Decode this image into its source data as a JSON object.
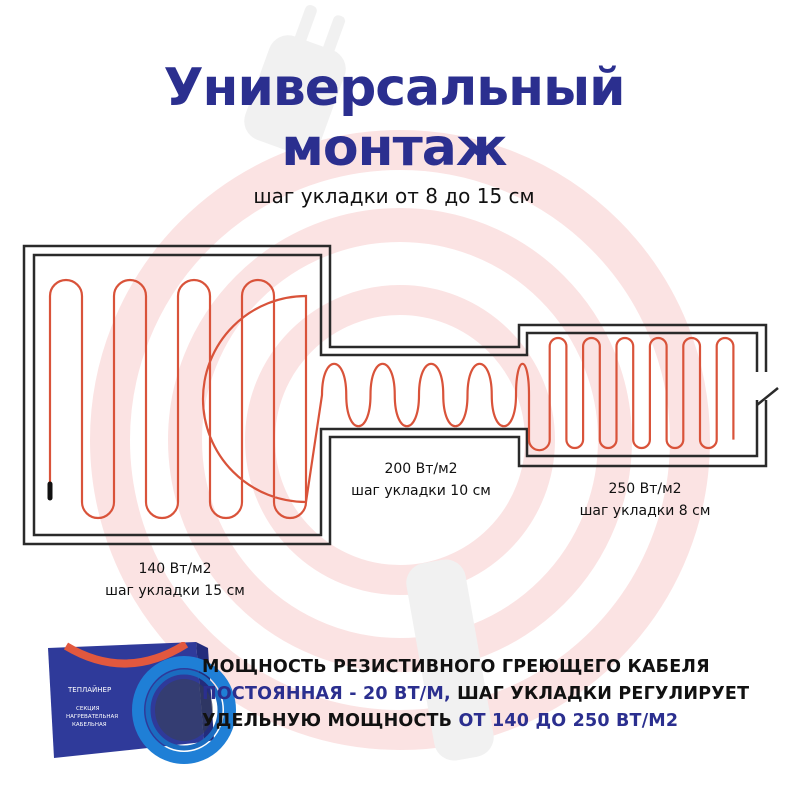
{
  "title": {
    "line1": "Универсальный",
    "line2": "монтаж"
  },
  "subtitle": "шаг укладки от 8 до 15 см",
  "zones": [
    {
      "power": "140 Вт/м2",
      "step": "шаг укладки 15 см"
    },
    {
      "power": "200 Вт/м2",
      "step": "шаг укладки 10 см"
    },
    {
      "power": "250 Вт/м2",
      "step": "шаг укладки 8 см"
    }
  ],
  "info": {
    "line1": "МОЩНОСТЬ РЕЗИСТИВНОГО ГРЕЮЩЕГО КАБЕЛЯ",
    "line2_highlight": "ПОСТОЯННАЯ - 20 ВТ/М,",
    "line2_rest": " ШАГ УКЛАДКИ РЕГУЛИРУЕТ",
    "line3_start": "УДЕЛЬНУЮ МОЩНОСТЬ ",
    "line3_highlight": "ОТ 140 ДО 250 ВТ/М2"
  },
  "product": {
    "brand": "ТЕПЛАЙНЕР",
    "name": "СЕКЦИЯ НАГРЕВАТЕЛЬНАЯ КАБЕЛЬНАЯ"
  },
  "colors": {
    "accent": "#2b2f8f",
    "cable": "#d9533a",
    "rings": "#fbe2e2",
    "cable_coil": "#1f7fd6"
  }
}
